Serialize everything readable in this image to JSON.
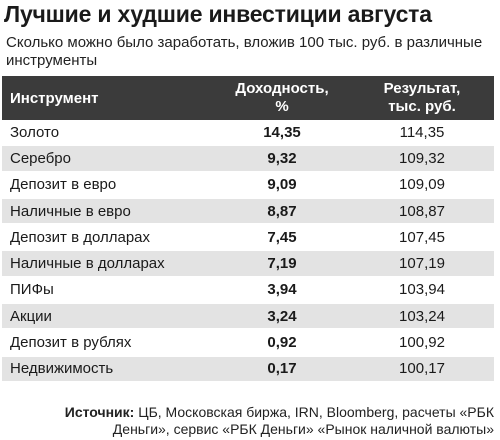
{
  "title": "Лучшие и худшие инвестиции августа",
  "subtitle": "Сколько можно было заработать, вложив 100 тыс. руб. в различные инструменты",
  "table": {
    "headers": {
      "name": "Инструмент",
      "yield_line1": "Доходность,",
      "yield_line2": "%",
      "result_line1": "Результат,",
      "result_line2": "тыс. руб."
    },
    "rows": [
      {
        "name": "Золото",
        "yield": "14,35",
        "result": "114,35"
      },
      {
        "name": "Серебро",
        "yield": "9,32",
        "result": "109,32"
      },
      {
        "name": "Депозит в евро",
        "yield": "9,09",
        "result": "109,09"
      },
      {
        "name": "Наличные в евро",
        "yield": "8,87",
        "result": "108,87"
      },
      {
        "name": "Депозит в долларах",
        "yield": "7,45",
        "result": "107,45"
      },
      {
        "name": "Наличные в долларах",
        "yield": "7,19",
        "result": "107,19"
      },
      {
        "name": "ПИФы",
        "yield": "3,94",
        "result": "103,94"
      },
      {
        "name": "Акции",
        "yield": "3,24",
        "result": "103,24"
      },
      {
        "name": "Депозит в рублях",
        "yield": "0,92",
        "result": "100,92"
      },
      {
        "name": "Недвижимость",
        "yield": "0,17",
        "result": "100,17"
      }
    ]
  },
  "source": {
    "label": "Источник:",
    "text": "ЦБ, Московская биржа, IRN, Bloomberg, расчеты «РБК Деньги», сервис «РБК Деньги» «Рынок наличной валюты»"
  },
  "colors": {
    "header_bg": "#3b3b3b",
    "stripe_bg": "#e3e3e3"
  }
}
